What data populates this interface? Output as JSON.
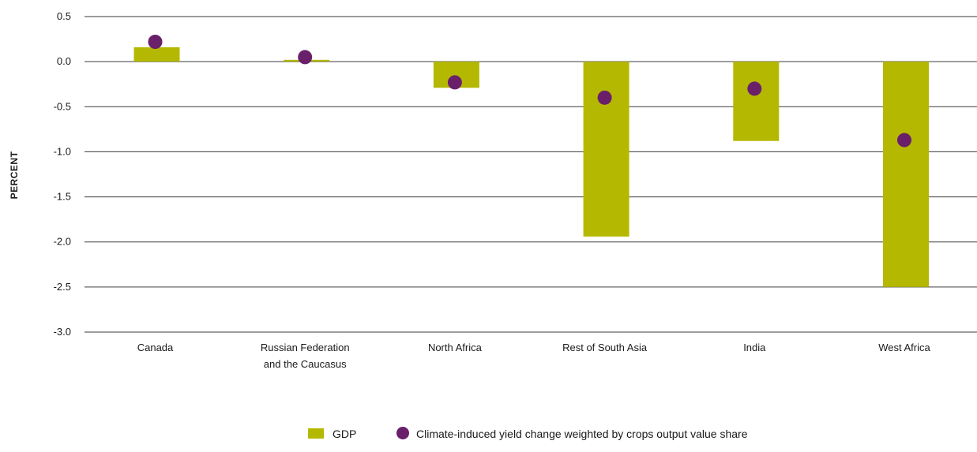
{
  "chart_data": {
    "type": "bar",
    "categories": [
      [
        "Canada"
      ],
      [
        "Russian Federation",
        "and the Caucasus"
      ],
      [
        "North Africa"
      ],
      [
        "Rest of South Asia"
      ],
      [
        "India"
      ],
      [
        "West Africa"
      ]
    ],
    "series": [
      {
        "name": "GDP",
        "type": "bar",
        "color": "#b5b800",
        "values": [
          0.16,
          0.02,
          -0.29,
          -1.94,
          -0.88,
          -2.5
        ]
      },
      {
        "name": "Climate-induced yield change weighted by crops output value share",
        "type": "scatter",
        "color": "#6a1f6b",
        "values": [
          0.22,
          0.05,
          -0.23,
          -0.4,
          -0.3,
          -0.87
        ]
      }
    ],
    "xlabel": "",
    "ylabel": "PERCENT",
    "ylim": [
      -3.0,
      0.5
    ],
    "yticks": [
      0.5,
      0.0,
      -0.5,
      -1.0,
      -1.5,
      -2.0,
      -2.5,
      -3.0
    ],
    "ytick_labels": [
      "0.5",
      "0.0",
      "-0.5",
      "-1.0",
      "-1.5",
      "-2.0",
      "-2.5",
      "-3.0"
    ],
    "grid": true,
    "legend_position": "bottom-center"
  }
}
